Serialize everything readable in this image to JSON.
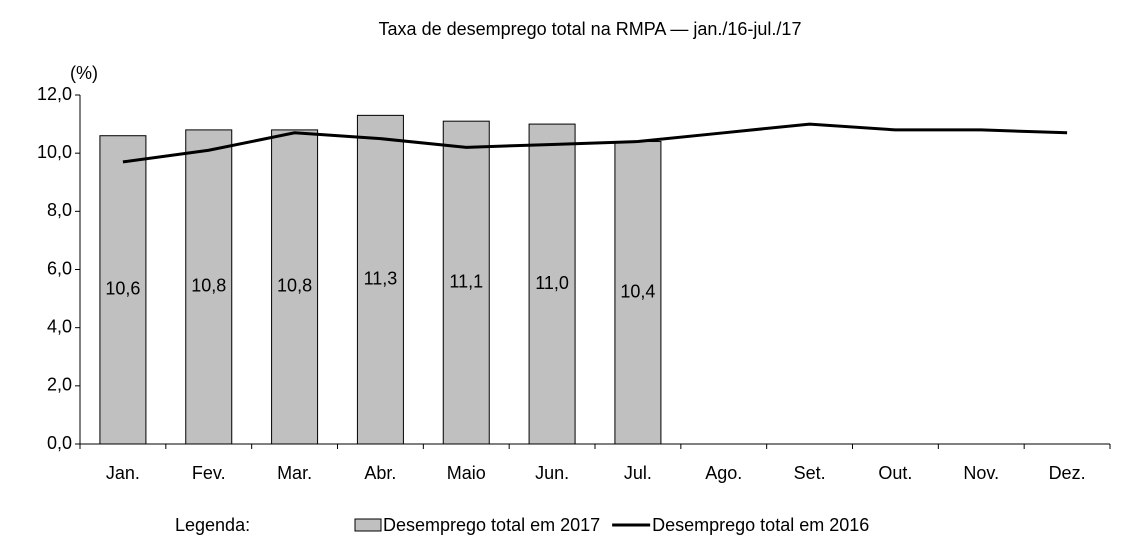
{
  "chart_data": {
    "type": "bar",
    "title": "Taxa de desemprego total na RMPA — jan./16-jul./17",
    "y_label": "(%)",
    "legend_title": "Legenda:",
    "categories": [
      "Jan.",
      "Fev.",
      "Mar.",
      "Abr.",
      "Maio",
      "Jun.",
      "Jul.",
      "Ago.",
      "Set.",
      "Out.",
      "Nov.",
      "Dez."
    ],
    "series": [
      {
        "name": "Desemprego total em 2017",
        "type": "bar",
        "color": "#c0c0c0",
        "values": [
          10.6,
          10.8,
          10.8,
          11.3,
          11.1,
          11.0,
          10.4,
          null,
          null,
          null,
          null,
          null
        ],
        "value_labels": [
          "10,6",
          "10,8",
          "10,8",
          "11,3",
          "11,1",
          "11,0",
          "10,4",
          null,
          null,
          null,
          null,
          null
        ]
      },
      {
        "name": "Desemprego total em 2016",
        "type": "line",
        "color": "#000000",
        "values": [
          9.7,
          10.1,
          10.7,
          10.5,
          10.2,
          10.3,
          10.4,
          10.7,
          11.0,
          10.8,
          10.8,
          10.7
        ]
      }
    ],
    "ylim": [
      0,
      12
    ],
    "yticks": [
      {
        "value": 0,
        "label": "0,0"
      },
      {
        "value": 2,
        "label": "2,0"
      },
      {
        "value": 4,
        "label": "4,0"
      },
      {
        "value": 6,
        "label": "6,0"
      },
      {
        "value": 8,
        "label": "8,0"
      },
      {
        "value": 10,
        "label": "10,0"
      },
      {
        "value": 12,
        "label": "12,0"
      }
    ],
    "grid": false,
    "legend": "bottom"
  }
}
